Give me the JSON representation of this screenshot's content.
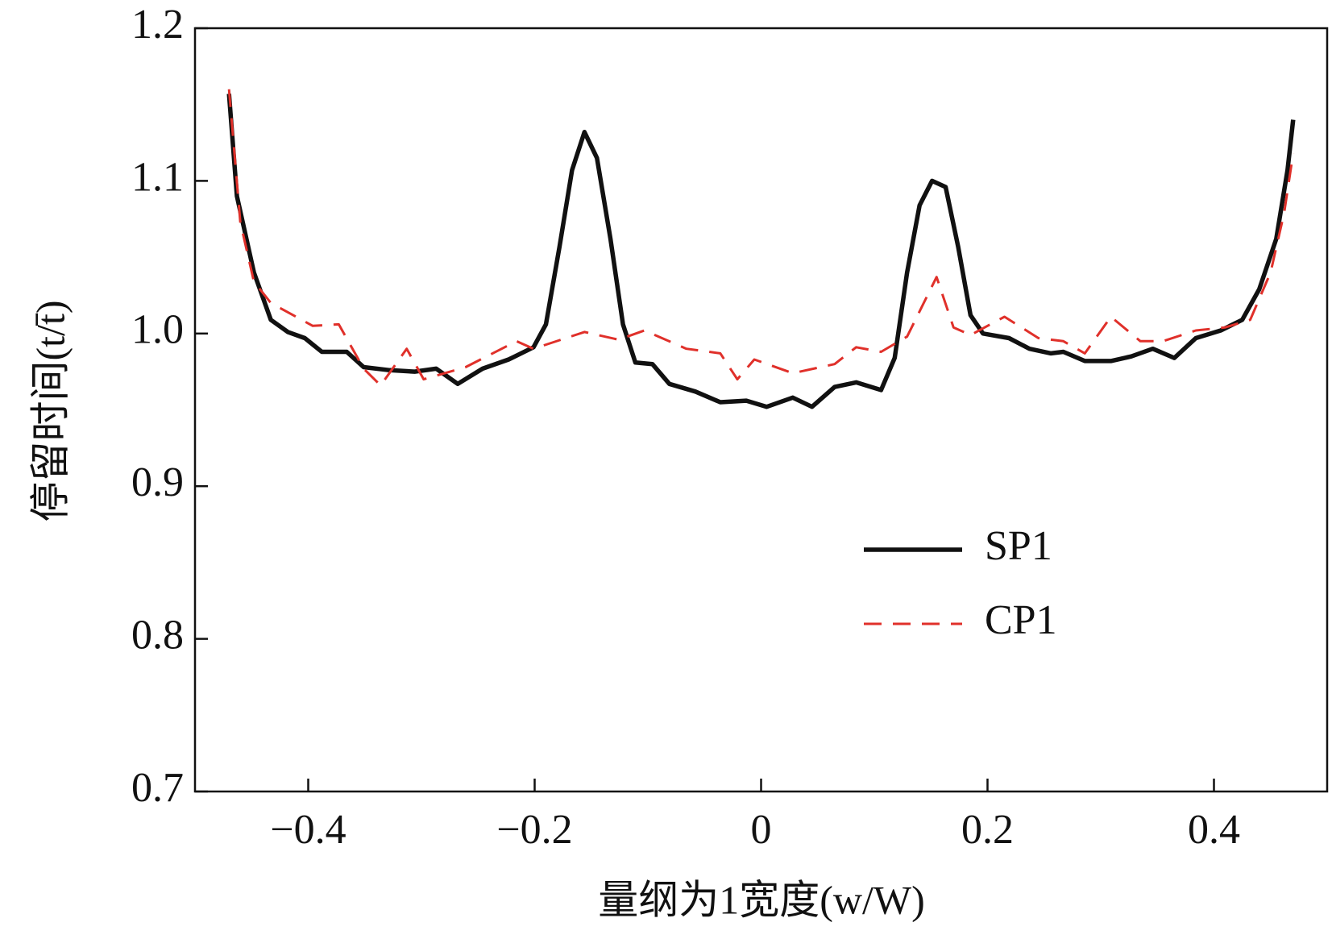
{
  "chart_data": {
    "type": "line",
    "xlabel": "量纲为1宽度(w/W)",
    "ylabel": "停留时间(t/t̄)",
    "xlim": [
      -0.5,
      0.5
    ],
    "ylim": [
      0.7,
      1.2
    ],
    "xticks": [
      {
        "value": -0.4,
        "label": "−0.4"
      },
      {
        "value": -0.2,
        "label": "−0.2"
      },
      0,
      0.2,
      0.4
    ],
    "yticks": [
      0.7,
      0.8,
      0.9,
      {
        "value": 1.0,
        "label": "1.0"
      },
      1.1,
      1.2
    ],
    "legend": "lower right",
    "series": [
      {
        "name": "SP1",
        "color": "#111111",
        "dash": false,
        "x": [
          -0.47,
          -0.463,
          -0.448,
          -0.433,
          -0.418,
          -0.403,
          -0.388,
          -0.366,
          -0.351,
          -0.328,
          -0.306,
          -0.287,
          -0.268,
          -0.246,
          -0.223,
          -0.201,
          -0.19,
          -0.178,
          -0.167,
          -0.156,
          -0.145,
          -0.133,
          -0.122,
          -0.111,
          -0.096,
          -0.081,
          -0.058,
          -0.036,
          -0.013,
          0.005,
          0.028,
          0.045,
          0.065,
          0.084,
          0.106,
          0.118,
          0.129,
          0.14,
          0.151,
          0.163,
          0.174,
          0.185,
          0.196,
          0.219,
          0.237,
          0.256,
          0.267,
          0.286,
          0.309,
          0.327,
          0.346,
          0.365,
          0.384,
          0.406,
          0.425,
          0.44,
          0.455,
          0.465,
          0.47
        ],
        "values": [
          1.157,
          1.09,
          1.04,
          1.009,
          1.001,
          0.997,
          0.988,
          0.988,
          0.978,
          0.976,
          0.975,
          0.977,
          0.967,
          0.977,
          0.983,
          0.991,
          1.006,
          1.057,
          1.107,
          1.132,
          1.115,
          1.062,
          1.006,
          0.981,
          0.98,
          0.967,
          0.962,
          0.955,
          0.956,
          0.952,
          0.958,
          0.952,
          0.965,
          0.968,
          0.963,
          0.984,
          1.04,
          1.084,
          1.1,
          1.096,
          1.057,
          1.012,
          1.0,
          0.997,
          0.99,
          0.987,
          0.988,
          0.982,
          0.982,
          0.985,
          0.99,
          0.984,
          0.997,
          1.002,
          1.009,
          1.029,
          1.062,
          1.107,
          1.14
        ]
      },
      {
        "name": "CP1",
        "color": "#e0302a",
        "dash": true,
        "x": [
          -0.47,
          -0.46,
          -0.448,
          -0.433,
          -0.396,
          -0.373,
          -0.351,
          -0.336,
          -0.313,
          -0.298,
          -0.261,
          -0.216,
          -0.201,
          -0.156,
          -0.126,
          -0.103,
          -0.066,
          -0.036,
          -0.021,
          -0.006,
          0.028,
          0.065,
          0.084,
          0.106,
          0.129,
          0.155,
          0.17,
          0.185,
          0.215,
          0.245,
          0.267,
          0.286,
          0.309,
          0.335,
          0.355,
          0.384,
          0.41,
          0.432,
          0.45,
          0.462,
          0.47
        ],
        "values": [
          1.16,
          1.073,
          1.034,
          1.02,
          1.005,
          1.006,
          0.977,
          0.966,
          0.99,
          0.97,
          0.978,
          0.995,
          0.99,
          1.001,
          0.996,
          1.002,
          0.99,
          0.987,
          0.97,
          0.983,
          0.974,
          0.98,
          0.991,
          0.988,
          0.998,
          1.037,
          1.004,
          0.999,
          1.011,
          0.997,
          0.995,
          0.987,
          1.011,
          0.995,
          0.995,
          1.002,
          1.004,
          1.009,
          1.04,
          1.079,
          1.118
        ]
      }
    ]
  }
}
